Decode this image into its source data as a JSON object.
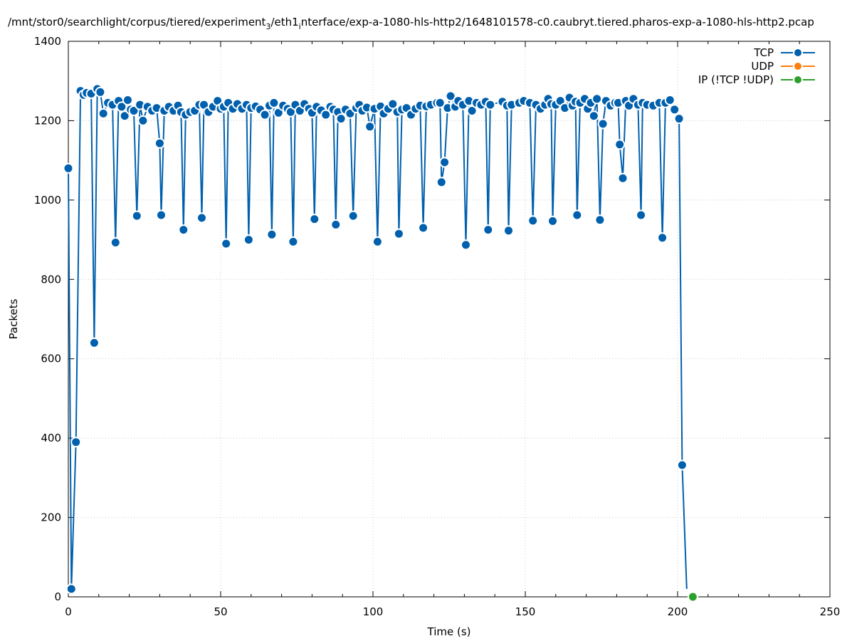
{
  "chart_data": {
    "type": "line",
    "title_parts": [
      "/mnt/stor0/searchlight/corpus/tiered/experiment",
      "3",
      "/eth1",
      "i",
      "nterface/exp-a-1080-hls-http2/1648101578-c0.caubryt.tiered.pharos-exp-a-1080-hls-http2.pcap"
    ],
    "xlabel": "Time (s)",
    "ylabel": "Packets",
    "xlim": [
      0,
      250
    ],
    "ylim": [
      0,
      1400
    ],
    "xticks": [
      0,
      50,
      100,
      150,
      200,
      250
    ],
    "yticks": [
      0,
      200,
      400,
      600,
      800,
      1000,
      1200,
      1400
    ],
    "grid": true,
    "legend_position": "top-right",
    "series": [
      {
        "name": "TCP",
        "color": "#0060ad",
        "points": [
          [
            0,
            1080
          ],
          [
            1,
            20
          ],
          [
            2.5,
            390
          ],
          [
            4,
            1275
          ],
          [
            5,
            1265
          ],
          [
            6,
            1270
          ],
          [
            7.5,
            1268
          ],
          [
            8.5,
            640
          ],
          [
            9.5,
            1280
          ],
          [
            10.5,
            1272
          ],
          [
            11.5,
            1218
          ],
          [
            13,
            1245
          ],
          [
            14.5,
            1240
          ],
          [
            15.5,
            893
          ],
          [
            16.5,
            1250
          ],
          [
            17.5,
            1235
          ],
          [
            18.5,
            1212
          ],
          [
            19.5,
            1252
          ],
          [
            20.5,
            1228
          ],
          [
            21.5,
            1225
          ],
          [
            22.5,
            960
          ],
          [
            23.5,
            1240
          ],
          [
            24.5,
            1200
          ],
          [
            26,
            1235
          ],
          [
            27.5,
            1225
          ],
          [
            29,
            1232
          ],
          [
            30,
            1143
          ],
          [
            30.5,
            962
          ],
          [
            31.5,
            1225
          ],
          [
            33,
            1235
          ],
          [
            34.5,
            1225
          ],
          [
            36,
            1238
          ],
          [
            37,
            1222
          ],
          [
            37.8,
            925
          ],
          [
            38.5,
            1215
          ],
          [
            40,
            1222
          ],
          [
            41.5,
            1225
          ],
          [
            43,
            1240
          ],
          [
            43.8,
            955
          ],
          [
            44.5,
            1240
          ],
          [
            46,
            1222
          ],
          [
            47.5,
            1235
          ],
          [
            49,
            1250
          ],
          [
            50,
            1230
          ],
          [
            51,
            1235
          ],
          [
            51.8,
            890
          ],
          [
            52.5,
            1245
          ],
          [
            54,
            1230
          ],
          [
            55.5,
            1242
          ],
          [
            57,
            1230
          ],
          [
            58.5,
            1240
          ],
          [
            59.2,
            900
          ],
          [
            60,
            1232
          ],
          [
            61.5,
            1236
          ],
          [
            63,
            1228
          ],
          [
            64.5,
            1215
          ],
          [
            66,
            1238
          ],
          [
            66.8,
            913
          ],
          [
            67.5,
            1245
          ],
          [
            69,
            1220
          ],
          [
            70.5,
            1238
          ],
          [
            72,
            1230
          ],
          [
            73,
            1222
          ],
          [
            73.8,
            895
          ],
          [
            74.5,
            1240
          ],
          [
            76,
            1225
          ],
          [
            77.5,
            1242
          ],
          [
            79,
            1230
          ],
          [
            80,
            1220
          ],
          [
            80.8,
            952
          ],
          [
            81.5,
            1235
          ],
          [
            83,
            1226
          ],
          [
            84.5,
            1215
          ],
          [
            86,
            1235
          ],
          [
            87,
            1228
          ],
          [
            87.8,
            938
          ],
          [
            88.5,
            1222
          ],
          [
            89.5,
            1205
          ],
          [
            91,
            1228
          ],
          [
            92.5,
            1218
          ],
          [
            93.5,
            960
          ],
          [
            94.5,
            1232
          ],
          [
            95.5,
            1240
          ],
          [
            96.5,
            1225
          ],
          [
            98,
            1233
          ],
          [
            99,
            1185
          ],
          [
            100.5,
            1230
          ],
          [
            101.5,
            895
          ],
          [
            102.5,
            1236
          ],
          [
            103.5,
            1218
          ],
          [
            105,
            1230
          ],
          [
            106.5,
            1242
          ],
          [
            108,
            1222
          ],
          [
            108.5,
            915
          ],
          [
            109.5,
            1228
          ],
          [
            111,
            1232
          ],
          [
            112.5,
            1215
          ],
          [
            114,
            1230
          ],
          [
            115.5,
            1238
          ],
          [
            116.5,
            930
          ],
          [
            117.5,
            1236
          ],
          [
            119,
            1240
          ],
          [
            121,
            1245
          ],
          [
            122,
            1245
          ],
          [
            122.5,
            1045
          ],
          [
            123.5,
            1095
          ],
          [
            124.5,
            1232
          ],
          [
            125.5,
            1262
          ],
          [
            127,
            1235
          ],
          [
            128,
            1250
          ],
          [
            129.5,
            1240
          ],
          [
            130.5,
            887
          ],
          [
            131.5,
            1250
          ],
          [
            132.5,
            1225
          ],
          [
            134,
            1245
          ],
          [
            135.5,
            1240
          ],
          [
            137,
            1248
          ],
          [
            137.8,
            925
          ],
          [
            138.5,
            1240
          ],
          [
            142.5,
            1248
          ],
          [
            144,
            1238
          ],
          [
            144.5,
            923
          ],
          [
            145.5,
            1240
          ],
          [
            148,
            1245
          ],
          [
            149.5,
            1250
          ],
          [
            151.5,
            1245
          ],
          [
            152.5,
            948
          ],
          [
            153.5,
            1240
          ],
          [
            155,
            1230
          ],
          [
            156.5,
            1240
          ],
          [
            157.5,
            1255
          ],
          [
            158.5,
            1242
          ],
          [
            159,
            947
          ],
          [
            160,
            1240
          ],
          [
            161.5,
            1250
          ],
          [
            163,
            1232
          ],
          [
            164.5,
            1258
          ],
          [
            165.5,
            1238
          ],
          [
            166.5,
            1248
          ],
          [
            167,
            962
          ],
          [
            168,
            1245
          ],
          [
            169.5,
            1255
          ],
          [
            170.5,
            1230
          ],
          [
            171.5,
            1245
          ],
          [
            172.5,
            1212
          ],
          [
            173.5,
            1255
          ],
          [
            174.5,
            950
          ],
          [
            175.5,
            1192
          ],
          [
            176.5,
            1250
          ],
          [
            178,
            1238
          ],
          [
            179.5,
            1245
          ],
          [
            180.5,
            1245
          ],
          [
            181,
            1140
          ],
          [
            182,
            1055
          ],
          [
            183,
            1250
          ],
          [
            184,
            1238
          ],
          [
            185.5,
            1255
          ],
          [
            187,
            1240
          ],
          [
            188,
            962
          ],
          [
            188.5,
            1245
          ],
          [
            190,
            1240
          ],
          [
            192,
            1238
          ],
          [
            194,
            1245
          ],
          [
            195,
            905
          ],
          [
            196,
            1245
          ],
          [
            197.5,
            1252
          ],
          [
            199,
            1228
          ],
          [
            200.5,
            1205
          ],
          [
            201.5,
            332
          ],
          [
            203,
            20
          ]
        ]
      },
      {
        "name": "UDP",
        "color": "#ff7f0e",
        "points": []
      },
      {
        "name": "IP (!TCP  !UDP)",
        "color": "#2ca02c",
        "points": [
          [
            205,
            0
          ]
        ]
      }
    ]
  }
}
